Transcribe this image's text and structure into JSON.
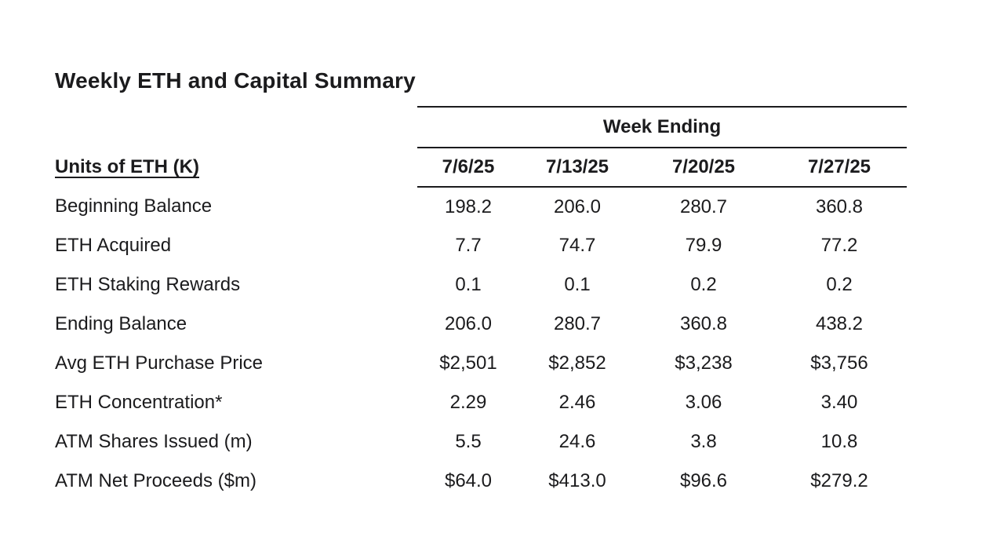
{
  "page": {
    "background": "#ffffff",
    "text_color": "#1b1b1d",
    "rule_color": "#1b1b1d"
  },
  "title": "Weekly ETH and Capital Summary",
  "table": {
    "group_header": "Week Ending",
    "row_header_label": "Units of ETH (K)",
    "columns": [
      "7/6/25",
      "7/13/25",
      "7/20/25",
      "7/27/25"
    ],
    "rows": [
      {
        "label": "Beginning Balance",
        "values": [
          "198.2",
          "206.0",
          "280.7",
          "360.8"
        ]
      },
      {
        "label": "ETH Acquired",
        "values": [
          "7.7",
          "74.7",
          "79.9",
          "77.2"
        ]
      },
      {
        "label": "ETH Staking Rewards",
        "values": [
          "0.1",
          "0.1",
          "0.2",
          "0.2"
        ]
      },
      {
        "label": "Ending Balance",
        "values": [
          "206.0",
          "280.7",
          "360.8",
          "438.2"
        ]
      },
      {
        "label": "Avg ETH Purchase Price",
        "values": [
          "$2,501",
          "$2,852",
          "$3,238",
          "$3,756"
        ]
      },
      {
        "label": "ETH Concentration*",
        "values": [
          "2.29",
          "2.46",
          "3.06",
          "3.40"
        ]
      },
      {
        "label": "ATM Shares Issued (m)",
        "values": [
          "5.5",
          "24.6",
          "3.8",
          "10.8"
        ]
      },
      {
        "label": "ATM Net Proceeds ($m)",
        "values": [
          "$64.0",
          "$413.0",
          "$96.6",
          "$279.2"
        ]
      }
    ]
  },
  "chart_data": {
    "type": "table",
    "title": "Weekly ETH and Capital Summary",
    "group_header": "Week Ending",
    "categories": [
      "7/6/25",
      "7/13/25",
      "7/20/25",
      "7/27/25"
    ],
    "series": [
      {
        "name": "Beginning Balance",
        "values": [
          198.2,
          206.0,
          280.7,
          360.8
        ]
      },
      {
        "name": "ETH Acquired",
        "values": [
          7.7,
          74.7,
          79.9,
          77.2
        ]
      },
      {
        "name": "ETH Staking Rewards",
        "values": [
          0.1,
          0.1,
          0.2,
          0.2
        ]
      },
      {
        "name": "Ending Balance",
        "values": [
          206.0,
          280.7,
          360.8,
          438.2
        ]
      },
      {
        "name": "Avg ETH Purchase Price",
        "values": [
          2501,
          2852,
          3238,
          3756
        ]
      },
      {
        "name": "ETH Concentration*",
        "values": [
          2.29,
          2.46,
          3.06,
          3.4
        ]
      },
      {
        "name": "ATM Shares Issued (m)",
        "values": [
          5.5,
          24.6,
          3.8,
          10.8
        ]
      },
      {
        "name": "ATM Net Proceeds ($m)",
        "values": [
          64.0,
          413.0,
          96.6,
          279.2
        ]
      }
    ]
  }
}
